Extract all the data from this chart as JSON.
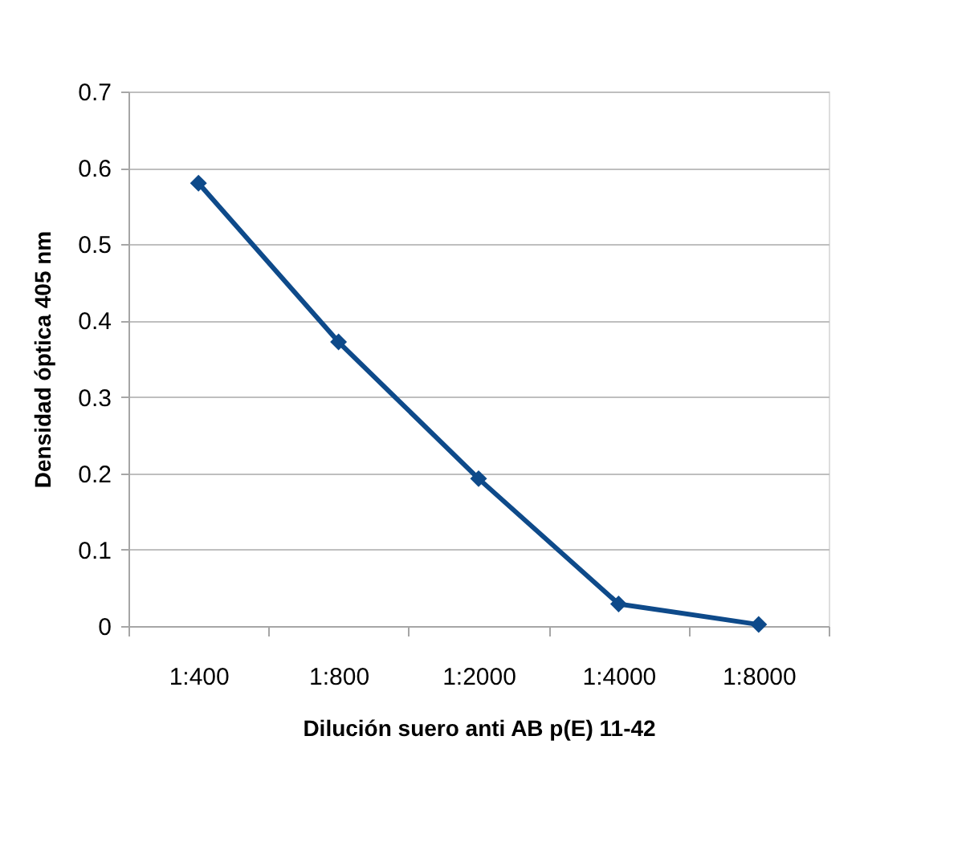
{
  "chart_data": {
    "type": "line",
    "xlabel": "Dilución suero anti AB p(E) 11-42",
    "ylabel": "Densidad óptica 405 nm",
    "categories": [
      "1:400",
      "1:800",
      "1:2000",
      "1:4000",
      "1:8000"
    ],
    "series": [
      {
        "color": "#0e4a8a",
        "values": [
          0.58,
          0.372,
          0.193,
          0.029,
          0.002
        ]
      }
    ],
    "marker": "diamond",
    "ylim": [
      0,
      0.7
    ],
    "yticks": [
      0,
      0.1,
      0.2,
      0.3,
      0.4,
      0.5,
      0.6,
      0.7
    ],
    "grid": "y",
    "line_style": "solid"
  }
}
